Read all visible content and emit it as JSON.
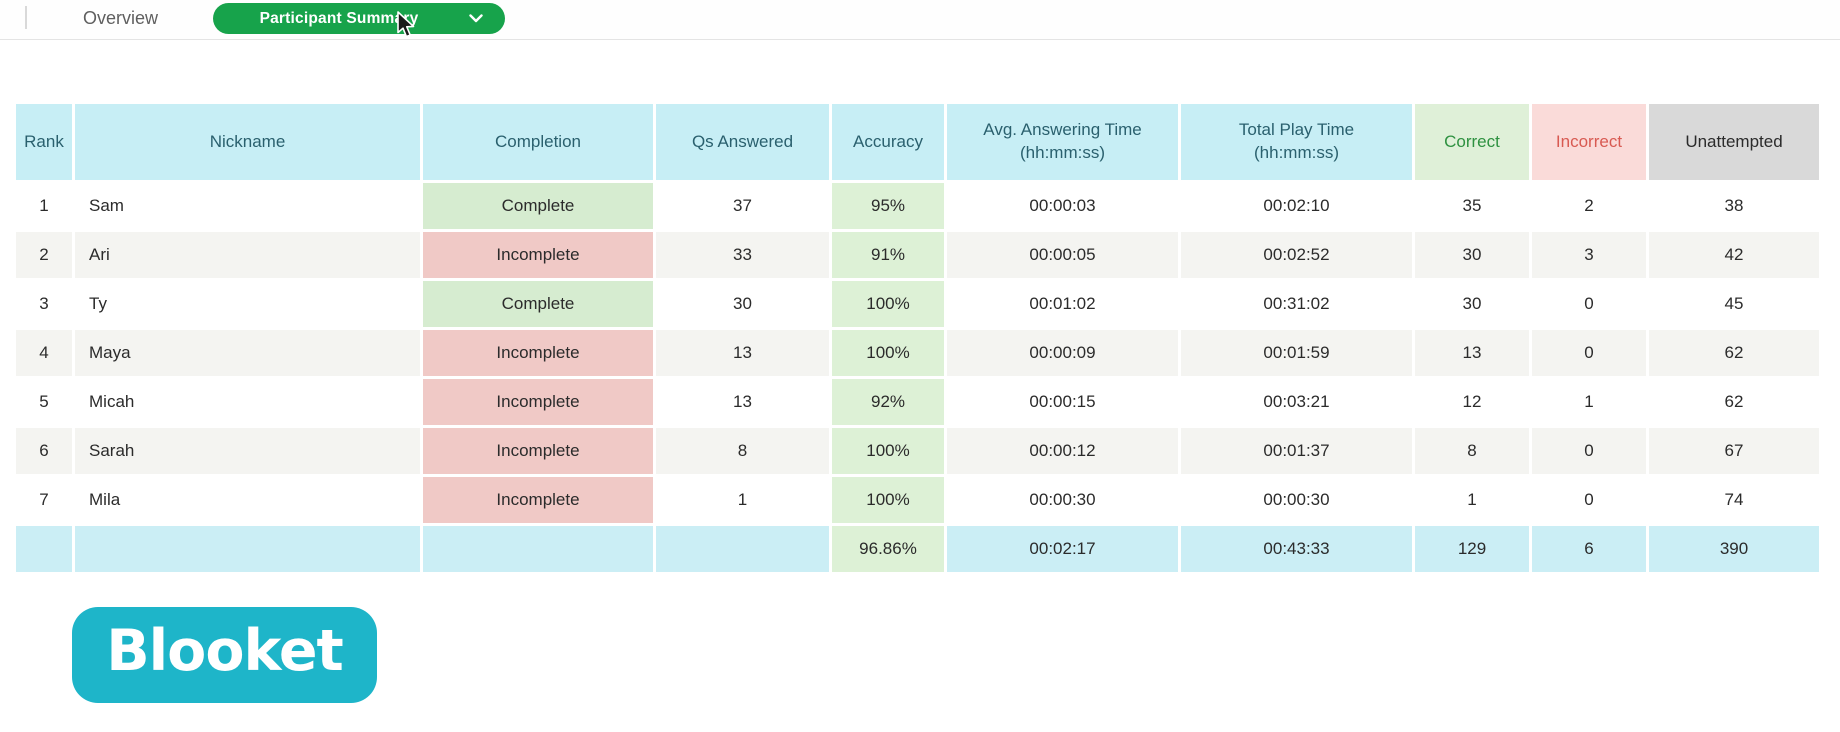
{
  "topbar": {
    "overview_tab": "Overview",
    "summary_tab": "Participant Summary"
  },
  "table": {
    "columns": [
      {
        "key": "rank",
        "label": "Rank",
        "style": "cyan"
      },
      {
        "key": "nickname",
        "label": "Nickname",
        "style": "cyan"
      },
      {
        "key": "completion",
        "label": "Completion",
        "style": "cyan"
      },
      {
        "key": "qs",
        "label": "Qs Answered",
        "style": "cyan"
      },
      {
        "key": "accuracy",
        "label": "Accuracy",
        "style": "cyan"
      },
      {
        "key": "avg_time",
        "label": "Avg. Answering Time",
        "sublabel": "(hh:mm:ss)",
        "style": "cyan"
      },
      {
        "key": "total_time",
        "label": "Total Play Time",
        "sublabel": "(hh:mm:ss)",
        "style": "cyan"
      },
      {
        "key": "correct",
        "label": "Correct",
        "style": "green"
      },
      {
        "key": "incorrect",
        "label": "Incorrect",
        "style": "pink"
      },
      {
        "key": "unattempted",
        "label": "Unattempted",
        "style": "gray"
      }
    ],
    "rows": [
      {
        "rank": "1",
        "nickname": "Sam",
        "completion": "Complete",
        "qs": "37",
        "accuracy": "95%",
        "avg_time": "00:00:03",
        "total_time": "00:02:10",
        "correct": "35",
        "incorrect": "2",
        "unattempted": "38"
      },
      {
        "rank": "2",
        "nickname": "Ari",
        "completion": "Incomplete",
        "qs": "33",
        "accuracy": "91%",
        "avg_time": "00:00:05",
        "total_time": "00:02:52",
        "correct": "30",
        "incorrect": "3",
        "unattempted": "42"
      },
      {
        "rank": "3",
        "nickname": "Ty",
        "completion": "Complete",
        "qs": "30",
        "accuracy": "100%",
        "avg_time": "00:01:02",
        "total_time": "00:31:02",
        "correct": "30",
        "incorrect": "0",
        "unattempted": "45"
      },
      {
        "rank": "4",
        "nickname": "Maya",
        "completion": "Incomplete",
        "qs": "13",
        "accuracy": "100%",
        "avg_time": "00:00:09",
        "total_time": "00:01:59",
        "correct": "13",
        "incorrect": "0",
        "unattempted": "62"
      },
      {
        "rank": "5",
        "nickname": "Micah",
        "completion": "Incomplete",
        "qs": "13",
        "accuracy": "92%",
        "avg_time": "00:00:15",
        "total_time": "00:03:21",
        "correct": "12",
        "incorrect": "1",
        "unattempted": "62"
      },
      {
        "rank": "6",
        "nickname": "Sarah",
        "completion": "Incomplete",
        "qs": "8",
        "accuracy": "100%",
        "avg_time": "00:00:12",
        "total_time": "00:01:37",
        "correct": "8",
        "incorrect": "0",
        "unattempted": "67"
      },
      {
        "rank": "7",
        "nickname": "Mila",
        "completion": "Incomplete",
        "qs": "1",
        "accuracy": "100%",
        "avg_time": "00:00:30",
        "total_time": "00:00:30",
        "correct": "1",
        "incorrect": "0",
        "unattempted": "74"
      }
    ],
    "summary": {
      "rank": "",
      "nickname": "",
      "completion": "",
      "qs": "",
      "accuracy": "96.86%",
      "avg_time": "00:02:17",
      "total_time": "00:43:33",
      "correct": "129",
      "incorrect": "6",
      "unattempted": "390"
    }
  },
  "logo": {
    "text": "Blooket",
    "brand_color": "#1eb5c9"
  },
  "colors": {
    "tab_pill_green": "#17a34b",
    "header_cyan": "#c7eef5",
    "header_teal_text": "#2a606e",
    "correct_header_bg": "#dff0d8",
    "correct_text": "#2e9140",
    "incorrect_header_bg": "#fadbd9",
    "incorrect_text": "#d85a52",
    "unattempted_header_bg": "#d9d9d9",
    "complete_cell_bg": "#d6ecd0",
    "incomplete_cell_bg": "#f0c9c6",
    "accuracy_cell_bg": "#ddf1d6",
    "summary_row_bg": "#cbeef5",
    "alt_row_bg": "#f4f4f1"
  }
}
